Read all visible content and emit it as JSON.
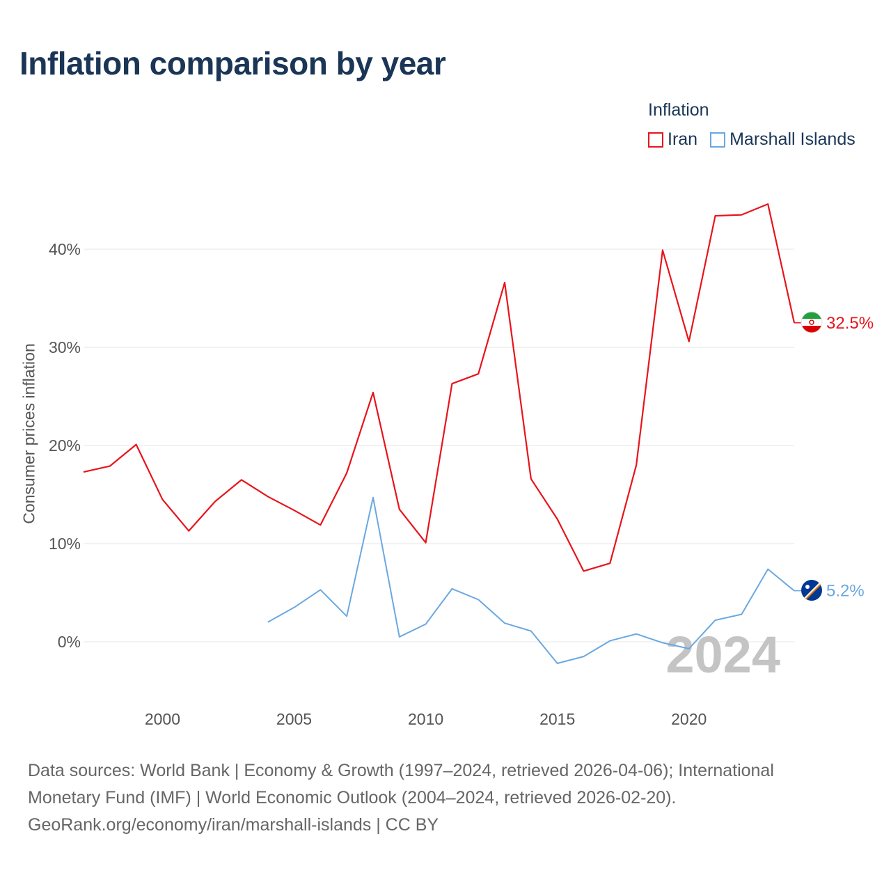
{
  "title": "Inflation comparison by year",
  "legend": {
    "title": "Inflation",
    "items": [
      {
        "label": "Iran",
        "color": "#e8141b"
      },
      {
        "label": "Marshall Islands",
        "color": "#6aa8e0"
      }
    ]
  },
  "footer": {
    "line1": "Data sources: World Bank | Economy & Growth (1997–2024, retrieved 2026-04-06); International",
    "line2": "Monetary Fund (IMF) | World Economic Outlook (2004–2024, retrieved 2026-02-20).",
    "line3": "GeoRank.org/economy/iran/marshall-islands | CC BY"
  },
  "chart_data": {
    "type": "line",
    "title": "Inflation comparison by year",
    "xlabel": "",
    "ylabel": "Consumer prices inflation",
    "xlim": [
      1997,
      2024
    ],
    "ylim": [
      -5,
      46
    ],
    "grid": true,
    "x_ticks": [
      2000,
      2005,
      2010,
      2015,
      2020
    ],
    "y_ticks": [
      {
        "value": 0,
        "label": "0%"
      },
      {
        "value": 10,
        "label": "10%"
      },
      {
        "value": 20,
        "label": "20%"
      },
      {
        "value": 30,
        "label": "30%"
      },
      {
        "value": 40,
        "label": "40%"
      }
    ],
    "watermark_year": "2024",
    "series": [
      {
        "name": "Iran",
        "color": "#e8141b",
        "end_label": "32.5%",
        "x": [
          1997,
          1998,
          1999,
          2000,
          2001,
          2002,
          2003,
          2004,
          2005,
          2006,
          2007,
          2008,
          2009,
          2010,
          2011,
          2012,
          2013,
          2014,
          2015,
          2016,
          2017,
          2018,
          2019,
          2020,
          2021,
          2022,
          2023,
          2024
        ],
        "values": [
          17.3,
          17.9,
          20.1,
          14.5,
          11.3,
          14.3,
          16.5,
          14.8,
          13.4,
          11.9,
          17.2,
          25.4,
          13.5,
          10.1,
          26.3,
          27.3,
          36.6,
          16.6,
          12.5,
          7.2,
          8.0,
          18.0,
          39.9,
          30.6,
          43.4,
          43.5,
          44.6,
          32.5
        ]
      },
      {
        "name": "Marshall Islands",
        "color": "#6aa8e0",
        "end_label": "5.2%",
        "x": [
          2004,
          2005,
          2006,
          2007,
          2008,
          2009,
          2010,
          2011,
          2012,
          2013,
          2014,
          2015,
          2016,
          2017,
          2018,
          2019,
          2020,
          2021,
          2022,
          2023,
          2024
        ],
        "values": [
          2.0,
          3.5,
          5.3,
          2.6,
          14.7,
          0.5,
          1.8,
          5.4,
          4.3,
          1.9,
          1.1,
          -2.2,
          -1.5,
          0.1,
          0.8,
          -0.1,
          -0.7,
          2.2,
          2.8,
          7.4,
          5.2
        ]
      }
    ]
  }
}
